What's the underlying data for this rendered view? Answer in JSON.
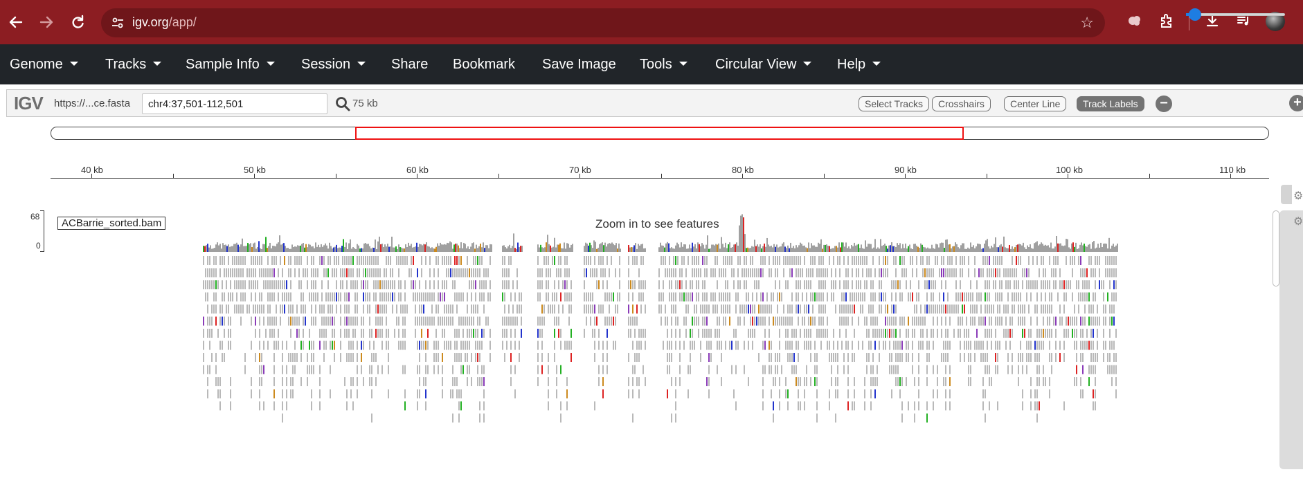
{
  "browser": {
    "url_host": "igv.org",
    "url_path": "/app/"
  },
  "menu": {
    "items": [
      {
        "label": "Genome",
        "dropdown": true
      },
      {
        "label": "Tracks",
        "dropdown": true
      },
      {
        "label": "Sample Info",
        "dropdown": true
      },
      {
        "label": "Session",
        "dropdown": true
      },
      {
        "label": "Share",
        "dropdown": false
      },
      {
        "label": "Bookmark",
        "dropdown": false
      },
      {
        "label": "Save Image",
        "dropdown": false
      },
      {
        "label": "Tools",
        "dropdown": true
      },
      {
        "label": "Circular View",
        "dropdown": true
      },
      {
        "label": "Help",
        "dropdown": true
      }
    ]
  },
  "navbar": {
    "logo": "IGV",
    "genome": "https://...ce.fasta",
    "locus": "chr4:37,501-112,501",
    "window_size": "75 kb",
    "buttons": {
      "select_tracks": "Select Tracks",
      "crosshairs": "Crosshairs",
      "center_line": "Center Line",
      "track_labels": "Track Labels"
    },
    "zoom_level": 0.03
  },
  "ruler": {
    "labels": [
      "40 kb",
      "50 kb",
      "60 kb",
      "70 kb",
      "80 kb",
      "90 kb",
      "100 kb",
      "110 kb"
    ]
  },
  "track": {
    "name": "ACBarrie_sorted.bam",
    "scale_max": "68",
    "scale_min": "0",
    "message": "Zoom in to see features"
  },
  "colors": {
    "browser_bar": "#8c1d22",
    "menubar": "#212529",
    "region_box": "#ee1111",
    "read_gray": "#b9b9b9",
    "coverage_gray": "#a0a0a0",
    "mismatch_a": "#22b022",
    "mismatch_c": "#2233cc",
    "mismatch_g": "#cc8a1e",
    "mismatch_t": "#dd2222",
    "insertion": "#8a3bb8"
  }
}
